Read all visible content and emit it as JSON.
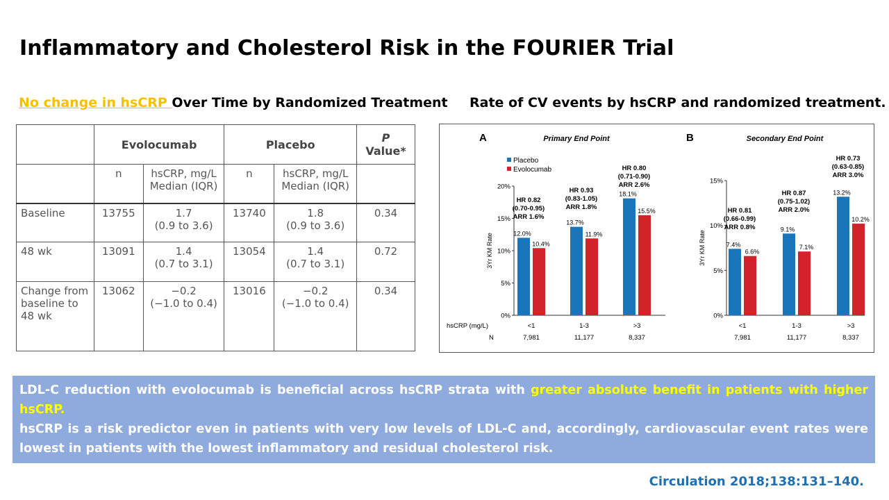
{
  "slide": {
    "title": "Inflammatory and Cholesterol Risk in the FOURIER Trial",
    "left_heading_highlight": "No change in hsCRP ",
    "left_heading_rest": "Over Time by Randomized Treatment",
    "right_heading": "Rate of CV events by hsCRP and randomized treatment.",
    "citation": "Circulation 2018;138:131–140."
  },
  "table": {
    "group_evolocumab": "Evolocumab",
    "group_placebo": "Placebo",
    "p_value_header_1": "P",
    "p_value_header_2": "Value*",
    "col_n": "n",
    "col_hscrp_1": "hsCRP, mg/L",
    "col_hscrp_2": "Median (IQR)",
    "rows": [
      {
        "label": "Baseline",
        "evo_n": "13755",
        "evo_med": "1.7",
        "evo_iqr": "(0.9 to 3.6)",
        "pla_n": "13740",
        "pla_med": "1.8",
        "pla_iqr": "(0.9 to 3.6)",
        "p": "0.34"
      },
      {
        "label": "48 wk",
        "evo_n": "13091",
        "evo_med": "1.4",
        "evo_iqr": "(0.7 to 3.1)",
        "pla_n": "13054",
        "pla_med": "1.4",
        "pla_iqr": "(0.7 to 3.1)",
        "p": "0.72"
      },
      {
        "label": "Change from baseline to 48 wk",
        "evo_n": "13062",
        "evo_med": "−0.2",
        "evo_iqr": "(−1.0 to 0.4)",
        "pla_n": "13016",
        "pla_med": "−0.2",
        "pla_iqr": "(−1.0 to 0.4)",
        "p": "0.34"
      }
    ]
  },
  "summary": {
    "line1_plain": "LDL-C reduction with evolocumab is beneficial across hsCRP strata with ",
    "line1_highlight": "greater absolute benefit in patients with higher hsCRP.",
    "line2": "hsCRP is a risk predictor even in patients with very low levels of LDL-C and, accordingly, cardiovascular event rates were lowest in patients with the lowest inflammatory and residual cholesterol risk."
  },
  "colors": {
    "placebo": "#1b75bb",
    "evolocumab": "#d2232a",
    "summary_bg": "#8faadc",
    "highlight_yellow": "#ffff00",
    "citation": "#1f6fb5"
  },
  "chart_data": [
    {
      "type": "bar",
      "panel_letter": "A",
      "title": "Primary End Point",
      "ylabel": "3Yr KM Rate",
      "xlabel": "hsCRP (mg/L)",
      "n_label": "N",
      "categories": [
        "<1",
        "1-3",
        ">3"
      ],
      "n_values": [
        "7,981",
        "11,177",
        "8,337"
      ],
      "ylim": [
        0,
        20
      ],
      "yticks": [
        0,
        5,
        10,
        15,
        20
      ],
      "series": [
        {
          "name": "Placebo",
          "values": [
            12.0,
            13.7,
            18.1
          ]
        },
        {
          "name": "Evolocumab",
          "values": [
            10.4,
            11.9,
            15.5
          ]
        }
      ],
      "bar_labels": {
        "Placebo": [
          "12.0%",
          "13.7%",
          "18.1%"
        ],
        "Evolocumab": [
          "10.4%",
          "11.9%",
          "15.5%"
        ]
      },
      "annotations": [
        [
          "HR 0.82",
          "(0.70-0.95)",
          "ARR 1.6%"
        ],
        [
          "HR 0.93",
          "(0.83-1.05)",
          "ARR 1.8%"
        ],
        [
          "HR 0.80",
          "(0.71-0.90)",
          "ARR 2.6%"
        ]
      ],
      "legend": "top-left"
    },
    {
      "type": "bar",
      "panel_letter": "B",
      "title": "Secondary End Point",
      "ylabel": "3Yr KM Rate",
      "categories": [
        "<1",
        "1-3",
        ">3"
      ],
      "n_values": [
        "7,981",
        "11,177",
        "8,337"
      ],
      "ylim": [
        0,
        15
      ],
      "yticks": [
        0,
        5,
        10,
        15
      ],
      "series": [
        {
          "name": "Placebo",
          "values": [
            7.4,
            9.1,
            13.2
          ]
        },
        {
          "name": "Evolocumab",
          "values": [
            6.6,
            7.1,
            10.2
          ]
        }
      ],
      "bar_labels": {
        "Placebo": [
          "7.4%",
          "9.1%",
          "13.2%"
        ],
        "Evolocumab": [
          "6.6%",
          "7.1%",
          "10.2%"
        ]
      },
      "annotations": [
        [
          "HR 0.81",
          "(0.66-0.99)",
          "ARR 0.8%"
        ],
        [
          "HR 0.87",
          "(0.75-1.02)",
          "ARR 2.0%"
        ],
        [
          "HR 0.73",
          "(0.63-0.85)",
          "ARR 3.0%"
        ]
      ]
    }
  ]
}
